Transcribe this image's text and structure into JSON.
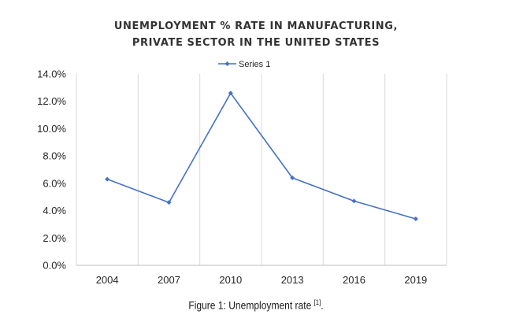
{
  "caption": {
    "text": "Figure 1: Unemployment rate ",
    "ref": "[1]",
    "end": "."
  },
  "chart_data": {
    "type": "line",
    "title": [
      "UNEMPLOYMENT % RATE IN MANUFACTURING,",
      "PRIVATE SECTOR IN THE UNITED STATES"
    ],
    "categories": [
      "2004",
      "2007",
      "2010",
      "2013",
      "2016",
      "2019"
    ],
    "series": [
      {
        "name": "Series 1",
        "values": [
          6.3,
          4.6,
          12.6,
          6.4,
          4.7,
          3.4
        ]
      }
    ],
    "ylim": [
      0,
      14
    ],
    "yticks": [
      0,
      2,
      4,
      6,
      8,
      10,
      12,
      14
    ],
    "ytick_labels": [
      "0.0%",
      "2.0%",
      "4.0%",
      "6.0%",
      "8.0%",
      "10.0%",
      "12.0%",
      "14.0%"
    ],
    "xlabel": "",
    "ylabel": "",
    "grid": "vertical",
    "legend": "top-center",
    "colors": {
      "series": "#4472C4",
      "grid": "#D9D9D9",
      "axis": "#BFBFBF"
    }
  }
}
